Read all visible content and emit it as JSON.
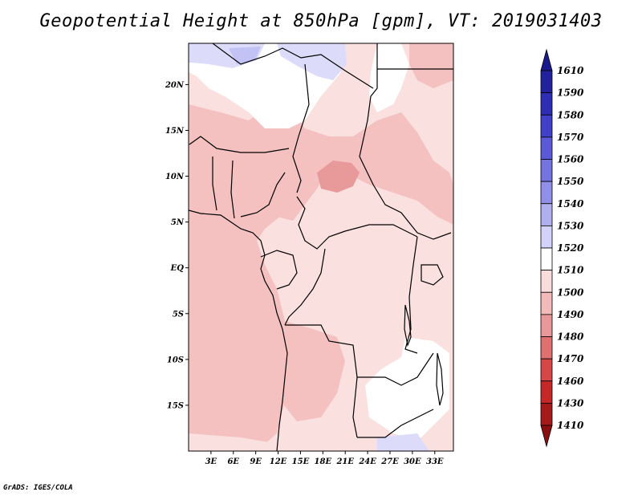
{
  "title": "Geopotential Height at 850hPa [gpm], VT: 2019031403",
  "footer": "GrADS: IGES/COLA",
  "map": {
    "lon_range": [
      0,
      35.5
    ],
    "lat_range": [
      -20,
      24.5
    ],
    "lat_ticks": [
      {
        "value": 20,
        "label": "20N"
      },
      {
        "value": 15,
        "label": "15N"
      },
      {
        "value": 10,
        "label": "10N"
      },
      {
        "value": 5,
        "label": "5N"
      },
      {
        "value": 0,
        "label": "EQ"
      },
      {
        "value": -5,
        "label": "5S"
      },
      {
        "value": -10,
        "label": "10S"
      },
      {
        "value": -15,
        "label": "15S"
      }
    ],
    "lon_ticks": [
      {
        "value": 3,
        "label": "3E"
      },
      {
        "value": 6,
        "label": "6E"
      },
      {
        "value": 9,
        "label": "9E"
      },
      {
        "value": 12,
        "label": "12E"
      },
      {
        "value": 15,
        "label": "15E"
      },
      {
        "value": 18,
        "label": "18E"
      },
      {
        "value": 21,
        "label": "21E"
      },
      {
        "value": 24,
        "label": "24E"
      },
      {
        "value": 27,
        "label": "27E"
      },
      {
        "value": 30,
        "label": "30E"
      },
      {
        "value": 33,
        "label": "33E"
      }
    ]
  },
  "colorbar": {
    "labels": [
      "1610",
      "1590",
      "1580",
      "1570",
      "1560",
      "1550",
      "1540",
      "1530",
      "1520",
      "1510",
      "1500",
      "1490",
      "1480",
      "1470",
      "1460",
      "1430",
      "1410"
    ],
    "colors": [
      "#1a1a8c",
      "#22229e",
      "#2e2eb4",
      "#4040c8",
      "#5a5ad8",
      "#7474e0",
      "#9090e8",
      "#b0b0f0",
      "#d2d2fa",
      "#ffffff",
      "#fadcdc",
      "#f4baba",
      "#e89898",
      "#de7070",
      "#d64848",
      "#c62828",
      "#a41a1a",
      "#8a1010"
    ]
  },
  "fill_colors": {
    "white": "#ffffff",
    "light": "#fbe0e0",
    "mid": "#f4c0c0",
    "dark": "#e89a9a",
    "blue_light": "#dcdcfa",
    "blue_mid": "#c2c2f4"
  }
}
